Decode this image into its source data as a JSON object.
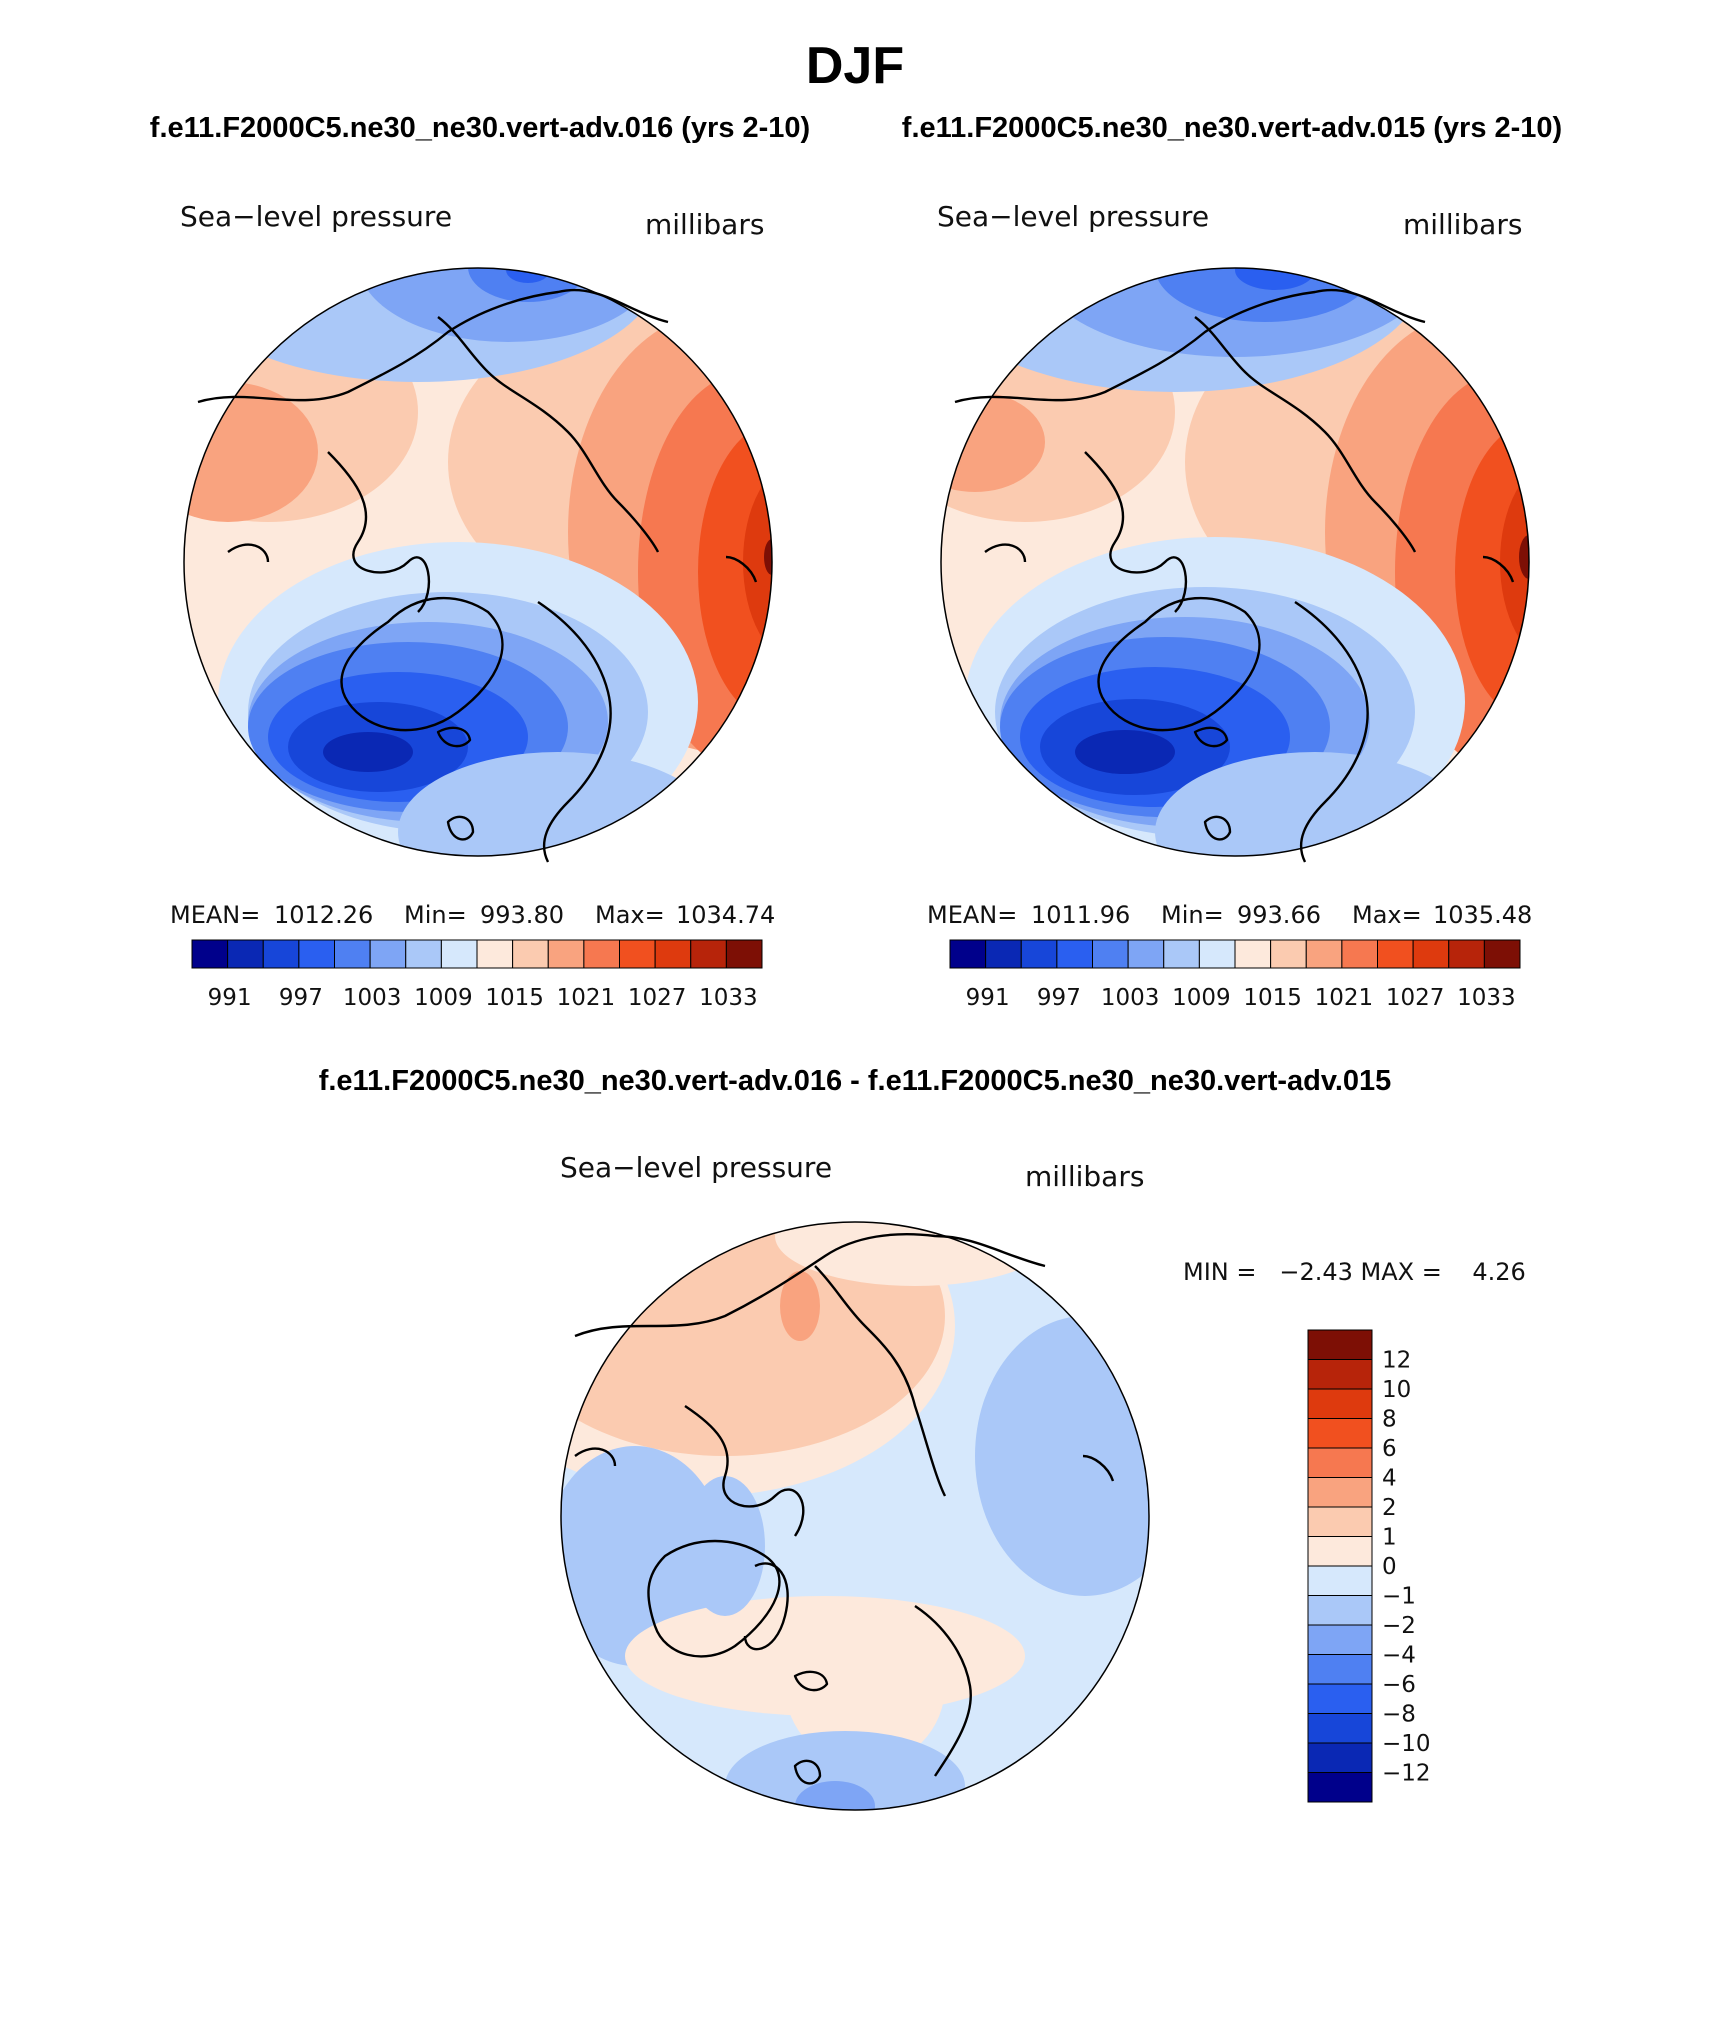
{
  "figure": {
    "title": "DJF",
    "subtitle_left": "f.e11.F2000C5.ne30_ne30.vert-adv.016 (yrs 2-10)",
    "subtitle_right": "f.e11.F2000C5.ne30_ne30.vert-adv.015 (yrs 2-10)",
    "diff_title": "f.e11.F2000C5.ne30_ne30.vert-adv.016 - f.e11.F2000C5.ne30_ne30.vert-adv.015"
  },
  "panels": [
    {
      "variable": "Sea−level pressure",
      "units": "millibars",
      "stats": {
        "mean_label": "MEAN=",
        "mean": "1012.26",
        "min_label": "Min=",
        "min": "993.80",
        "max_label": "Max=",
        "max": "1034.74"
      }
    },
    {
      "variable": "Sea−level pressure",
      "units": "millibars",
      "stats": {
        "mean_label": "MEAN=",
        "mean": "1011.96",
        "min_label": "Min=",
        "min": "993.66",
        "max_label": "Max=",
        "max": "1035.48"
      }
    },
    {
      "variable": "Sea−level pressure",
      "units": "millibars",
      "minmax_text": "MIN =   −2.43 MAX =    4.26"
    }
  ],
  "colorbar_abs": {
    "colors": [
      "#00008b",
      "#0a28b4",
      "#1746d9",
      "#2a5ff0",
      "#4f80f2",
      "#7ea5f5",
      "#aac8f8",
      "#d6e8fc",
      "#fde9dc",
      "#fbcbb0",
      "#f9a37f",
      "#f67850",
      "#f1501f",
      "#de3a0e",
      "#b7240a",
      "#7d0f05"
    ],
    "tick_labels": [
      "991",
      "997",
      "1003",
      "1009",
      "1015",
      "1021",
      "1027",
      "1033"
    ]
  },
  "colorbar_diff": {
    "colors": [
      "#7d0f05",
      "#b7240a",
      "#de3a0e",
      "#f1501f",
      "#f67850",
      "#f9a37f",
      "#fbcbb0",
      "#fde9dc",
      "#d6e8fc",
      "#aac8f8",
      "#7ea5f5",
      "#4f80f2",
      "#2a5ff0",
      "#1746d9",
      "#0a28b4",
      "#00008b"
    ],
    "tick_labels": [
      "12",
      "10",
      "8",
      "6",
      "4",
      "2",
      "1",
      "0",
      "−1",
      "−2",
      "−4",
      "−6",
      "−8",
      "−10",
      "−12"
    ]
  }
}
